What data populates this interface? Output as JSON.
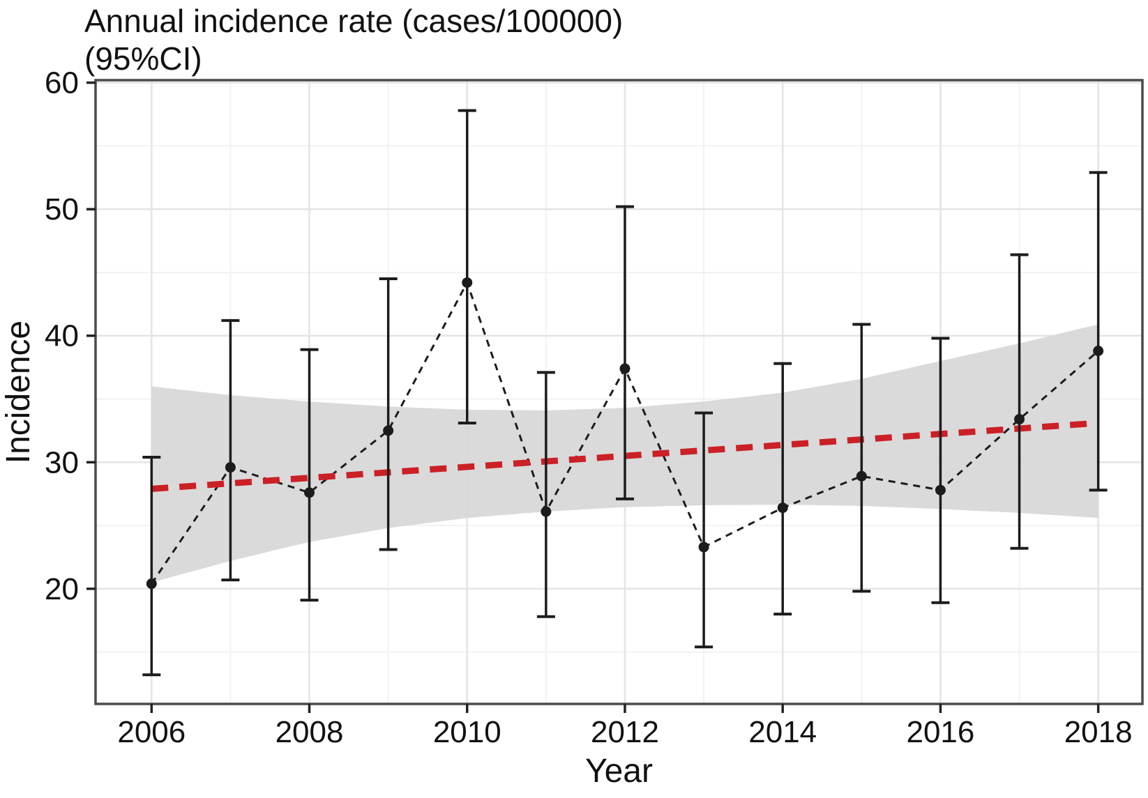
{
  "title": {
    "line1": "Annual incidence rate (cases/100000)",
    "line2": "(95%CI)"
  },
  "chart_data": {
    "type": "line",
    "title": "Annual incidence rate (cases/100000) (95%CI)",
    "xlabel": "Year",
    "ylabel": "Incidence",
    "legend_position": "none",
    "grid": "on",
    "xlim": [
      2005.29,
      2018.56
    ],
    "ylim": [
      10.9,
      60.2
    ],
    "x_major_ticks": [
      2006,
      2008,
      2010,
      2012,
      2014,
      2016,
      2018
    ],
    "x_minor_gridlines": [
      2007,
      2009,
      2011,
      2013,
      2015,
      2017
    ],
    "y_major_ticks": [
      20,
      30,
      40,
      50,
      60
    ],
    "y_minor_gridlines": [
      15,
      25,
      35,
      45,
      55
    ],
    "series": [
      {
        "name": "annual-incidence-with-95ci",
        "style": "black-dashed-line-with-points-and-error-bars",
        "x": [
          2006,
          2007,
          2008,
          2009,
          2010,
          2011,
          2012,
          2013,
          2014,
          2015,
          2016,
          2017,
          2018
        ],
        "y": [
          20.4,
          29.6,
          27.6,
          32.5,
          44.2,
          26.1,
          37.4,
          23.3,
          26.4,
          28.9,
          27.8,
          33.4,
          38.8
        ],
        "ci_low": [
          13.2,
          20.7,
          19.1,
          23.1,
          33.1,
          17.8,
          27.1,
          15.4,
          18.0,
          19.8,
          18.9,
          23.2,
          27.8
        ],
        "ci_high": [
          30.4,
          41.2,
          38.9,
          44.5,
          57.8,
          37.1,
          50.2,
          33.9,
          37.8,
          40.9,
          39.8,
          46.4,
          52.9
        ],
        "color": "#1c1c1c"
      },
      {
        "name": "linear-trend",
        "style": "red-dashed-line",
        "x": [
          2006,
          2018
        ],
        "y": [
          27.9,
          33.1
        ],
        "color": "#cb2026"
      },
      {
        "name": "trend-95ci-band",
        "style": "gray-ribbon",
        "x": [
          2006,
          2007,
          2008,
          2009,
          2010,
          2011,
          2012,
          2013,
          2014,
          2015,
          2016,
          2017,
          2018
        ],
        "upper": [
          36.0,
          35.3,
          34.8,
          34.4,
          34.15,
          34.1,
          34.3,
          34.8,
          35.5,
          36.6,
          38.0,
          39.4,
          40.9
        ],
        "lower": [
          20.5,
          22.2,
          23.7,
          24.8,
          25.6,
          26.1,
          26.45,
          26.6,
          26.65,
          26.55,
          26.3,
          26.0,
          25.6
        ],
        "color": "#d6d6d6"
      }
    ],
    "colors": {
      "point_and_error": "#1c1c1c",
      "trend_red": "#cb2026",
      "ribbon_gray": "#d6d6d6",
      "grid_major": "#e4e4e4",
      "grid_minor": "#f2f2f2",
      "panel_border": "#4a4a4a",
      "tick_text": "#111111"
    }
  }
}
